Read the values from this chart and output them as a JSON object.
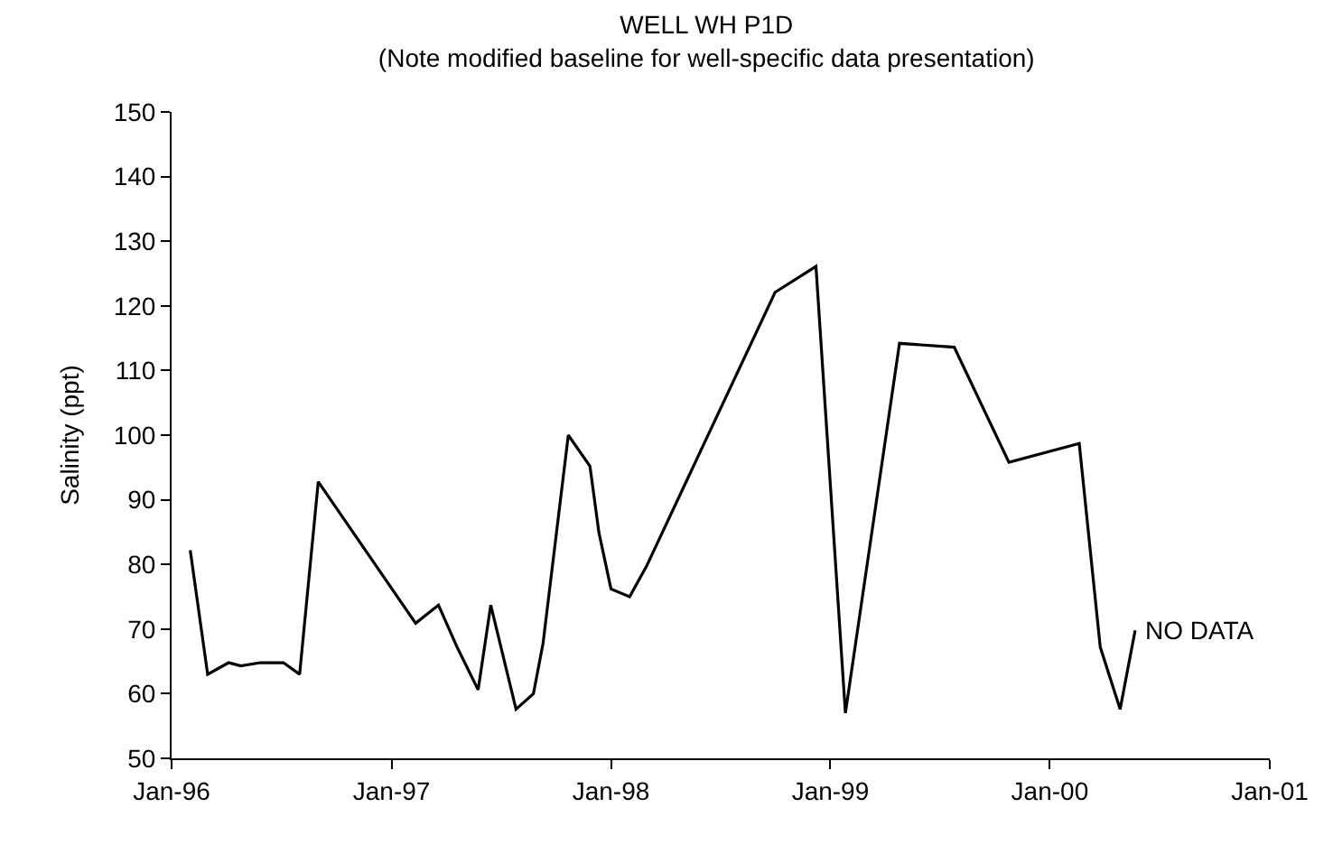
{
  "chart_data": {
    "type": "line",
    "title": "WELL WH P1D",
    "subtitle": "(Note modified baseline for well-specific data presentation)",
    "ylabel": "Salinity (ppt)",
    "x": [
      "1996-02-01",
      "1996-03-01",
      "1996-04-05",
      "1996-04-25",
      "1996-05-28",
      "1996-07-05",
      "1996-08-01",
      "1996-09-01",
      "1997-02-10",
      "1997-03-20",
      "1997-04-20",
      "1997-05-25",
      "1997-06-15",
      "1997-07-27",
      "1997-08-25",
      "1997-09-10",
      "1997-10-22",
      "1997-11-27",
      "1997-12-12",
      "1998-01-01",
      "1998-02-01",
      "1998-03-01",
      "1998-10-01",
      "1998-12-08",
      "1999-01-26",
      "1999-04-26",
      "1999-07-26",
      "1999-10-25",
      "2000-02-19",
      "2000-03-25",
      "2000-04-27",
      "2000-05-22"
    ],
    "series": [
      {
        "color": "#000000",
        "values": [
          82.2,
          63,
          64.8,
          64.3,
          64.8,
          64.8,
          63,
          92.8,
          70.9,
          73.7,
          67.2,
          60.6,
          73.7,
          57.6,
          60,
          67.8,
          100,
          95.2,
          84.9,
          76.2,
          75,
          79.7,
          122.1,
          126.1,
          57,
          114.2,
          113.6,
          95.8,
          98.7,
          67.2,
          57.6,
          69.8
        ]
      }
    ],
    "annotations": [
      {
        "text": "NO DATA",
        "x": "2000-05-22",
        "y": 69.8
      }
    ],
    "xlim": [
      "1996-01-01",
      "2001-01-01"
    ],
    "xticks": [
      {
        "value": "1996-01-01",
        "label": "Jan-96"
      },
      {
        "value": "1997-01-01",
        "label": "Jan-97"
      },
      {
        "value": "1998-01-01",
        "label": "Jan-98"
      },
      {
        "value": "1999-01-01",
        "label": "Jan-99"
      },
      {
        "value": "2000-01-01",
        "label": "Jan-00"
      },
      {
        "value": "2001-01-01",
        "label": "Jan-01"
      }
    ],
    "ylim": [
      50,
      150
    ],
    "yticks": [
      50,
      60,
      70,
      80,
      90,
      100,
      110,
      120,
      130,
      140,
      150
    ],
    "marker": "none",
    "line_style": "solid"
  }
}
